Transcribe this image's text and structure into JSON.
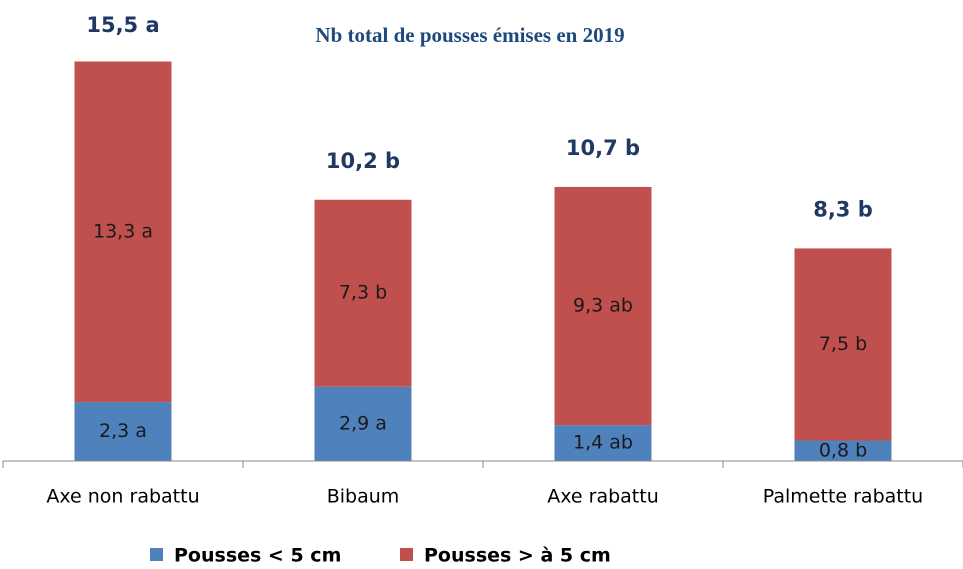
{
  "chart_data": {
    "type": "stacked_bar",
    "title": "Nb total de pousses émises en 2019",
    "categories": [
      "Axe non rabattu",
      "Bibaum",
      "Axe rabattu",
      "Palmette rabattu"
    ],
    "series": [
      {
        "name": "Pousses < 5 cm",
        "color": "#4f81bd",
        "values": [
          2.3,
          2.9,
          1.4,
          0.8
        ],
        "value_labels": [
          "2,3 a",
          "2,9 a",
          "1,4 ab",
          "0,8 b"
        ]
      },
      {
        "name": "Pousses > à 5 cm",
        "color": "#c0504d",
        "values": [
          13.3,
          7.3,
          9.3,
          7.5
        ],
        "value_labels": [
          "13,3 a",
          "7,3 b",
          "9,3 ab",
          "7,5 b"
        ]
      }
    ],
    "totals": [
      15.5,
      10.2,
      10.7,
      8.3
    ],
    "total_labels": [
      "15,5 a",
      "10,2 b",
      "10,7 b",
      "8,3 b"
    ],
    "ylim": [
      0,
      18
    ]
  }
}
